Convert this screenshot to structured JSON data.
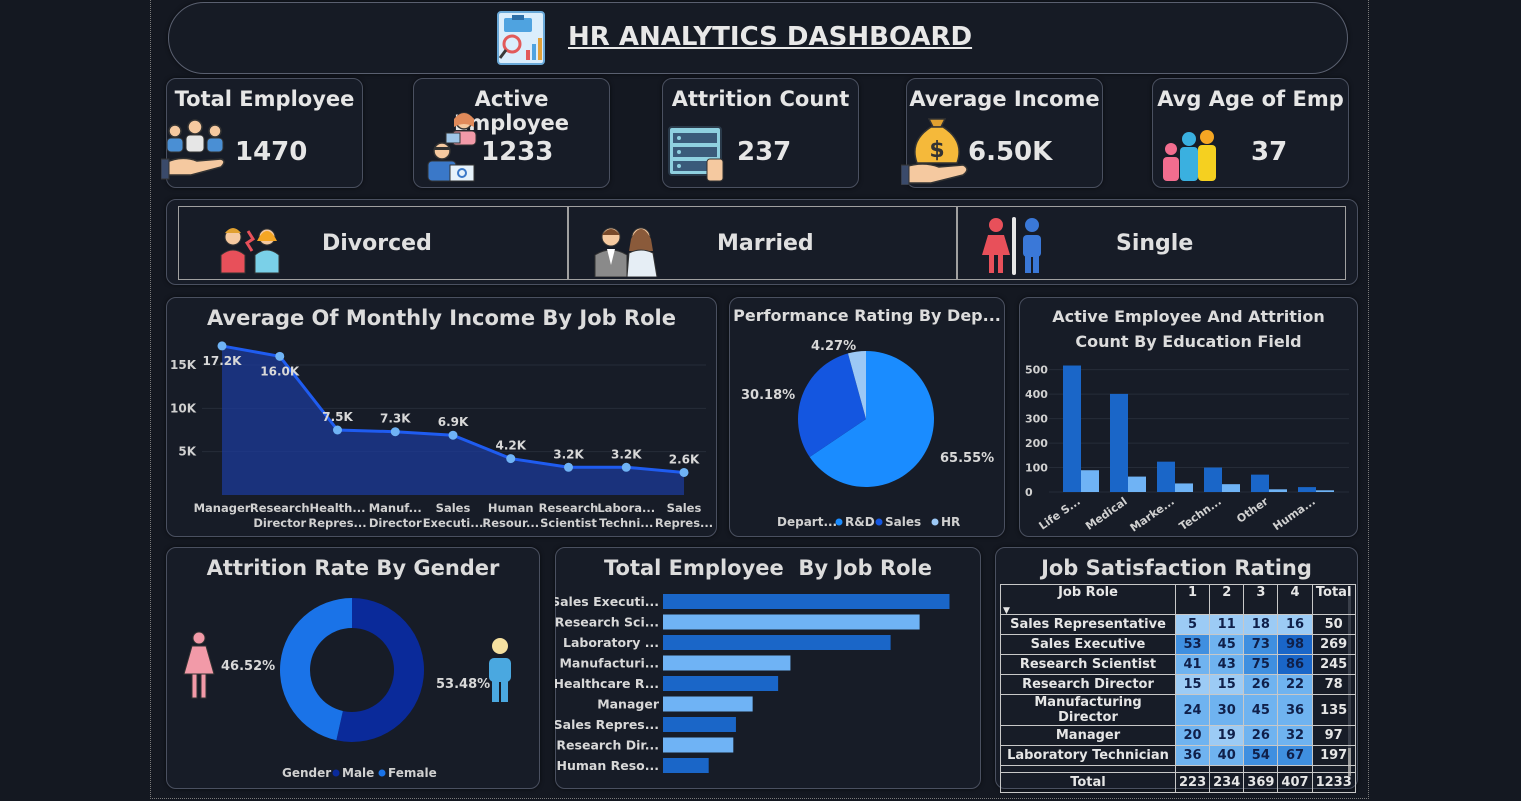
{
  "header": {
    "title": "HR ANALYTICS DASHBOARD"
  },
  "kpis": [
    {
      "label": "Total Employee",
      "value": "1470",
      "icon": "employees-hand-icon"
    },
    {
      "label": "Active Employee",
      "value": "1233",
      "icon": "active-workers-icon"
    },
    {
      "label": "Attrition Count",
      "value": "237",
      "icon": "server-attrition-icon"
    },
    {
      "label": "Average Income",
      "value": "6.50K",
      "icon": "money-bag-icon"
    },
    {
      "label": "Avg Age of Emp",
      "value": "37",
      "icon": "family-age-icon"
    }
  ],
  "marital": [
    {
      "label": "Divorced",
      "icon": "divorced-couple-icon"
    },
    {
      "label": "Married",
      "icon": "married-couple-icon"
    },
    {
      "label": "Single",
      "icon": "single-person-icon"
    }
  ],
  "colors": {
    "background": "#141821",
    "card": "#171c27",
    "accent": "#1a73e8",
    "light_blue": "#6fb3f5",
    "dark_blue": "#0a2a9a"
  },
  "chart_data": [
    {
      "id": "income-by-role",
      "type": "area",
      "title": "Average Of Monthly Income By Job Role",
      "categories": [
        "Manager",
        "Research Director",
        "Health... Repres...",
        "Manuf... Director",
        "Sales Executi...",
        "Human Resour...",
        "Research Scientist",
        "Labora... Techni...",
        "Sales Repres..."
      ],
      "values": [
        17.2,
        16.0,
        7.5,
        7.3,
        6.9,
        4.2,
        3.2,
        3.2,
        2.6
      ],
      "data_labels": [
        "17.2K",
        "16.0K",
        "7.5K",
        "7.3K",
        "6.9K",
        "4.2K",
        "3.2K",
        "3.2K",
        "2.6K"
      ],
      "y_ticks": [
        "5K",
        "10K",
        "15K"
      ],
      "ylim": [
        0,
        18
      ]
    },
    {
      "id": "performance-by-dept",
      "type": "pie",
      "title": "Performance Rating By Dep...",
      "legend_title": "Depart...",
      "labels": [
        "R&D",
        "Sales",
        "HR"
      ],
      "values": [
        65.55,
        30.18,
        4.27
      ],
      "data_labels": [
        "65.55%",
        "30.18%",
        "4.27%"
      ],
      "colors": [
        "#1a8cff",
        "#1456e0",
        "#9cc8f5"
      ]
    },
    {
      "id": "active-attrition-by-edu",
      "type": "bar",
      "title": "Active Employee And Attrition Count By Education Field",
      "categories": [
        "Life S...",
        "Medical",
        "Marke...",
        "Techn...",
        "Other",
        "Huma..."
      ],
      "series": [
        {
          "values": [
            517,
            401,
            124,
            100,
            71,
            20
          ]
        },
        {
          "values": [
            89,
            63,
            35,
            32,
            11,
            7
          ]
        }
      ],
      "y_ticks": [
        "0",
        "100",
        "200",
        "300",
        "400",
        "500"
      ],
      "ylim": [
        0,
        560
      ]
    },
    {
      "id": "attrition-by-gender",
      "type": "pie",
      "title": "Attrition Rate By Gender",
      "legend_title": "Gender",
      "labels": [
        "Male",
        "Female"
      ],
      "values": [
        53.48,
        46.52
      ],
      "data_labels": [
        "53.48%",
        "46.52%"
      ],
      "colors": [
        "#0a2a9a",
        "#1a73e8"
      ]
    },
    {
      "id": "employees-by-role",
      "type": "bar",
      "title": "Total Employee  By Job Role",
      "categories": [
        "Sales Executi...",
        "Research Sci...",
        "Laboratory ...",
        "Manufacturi...",
        "Healthcare R...",
        "Manager",
        "Sales Repres...",
        "Research Dir...",
        "Human Reso..."
      ],
      "values": [
        326,
        292,
        259,
        145,
        131,
        102,
        83,
        80,
        52
      ],
      "xlim": [
        0,
        330
      ]
    }
  ],
  "satisfaction": {
    "title": "Job Satisfaction Rating",
    "headers": [
      "Job Role",
      "1",
      "2",
      "3",
      "4",
      "Total"
    ],
    "rows": [
      {
        "role": "Sales Representative",
        "v": [
          "5",
          "11",
          "18",
          "16"
        ],
        "total": "50"
      },
      {
        "role": "Sales Executive",
        "v": [
          "53",
          "45",
          "73",
          "98"
        ],
        "total": "269"
      },
      {
        "role": "Research Scientist",
        "v": [
          "41",
          "43",
          "75",
          "86"
        ],
        "total": "245"
      },
      {
        "role": "Research Director",
        "v": [
          "15",
          "15",
          "26",
          "22"
        ],
        "total": "78"
      },
      {
        "role": "Manufacturing Director",
        "v": [
          "24",
          "30",
          "45",
          "36"
        ],
        "total": "135"
      },
      {
        "role": "Manager",
        "v": [
          "20",
          "19",
          "26",
          "32"
        ],
        "total": "97"
      },
      {
        "role": "Laboratory Technician",
        "v": [
          "36",
          "40",
          "54",
          "67"
        ],
        "total": "197"
      }
    ],
    "footer": {
      "label": "Total",
      "v": [
        "223",
        "234",
        "369",
        "407"
      ],
      "total": "1233"
    }
  }
}
